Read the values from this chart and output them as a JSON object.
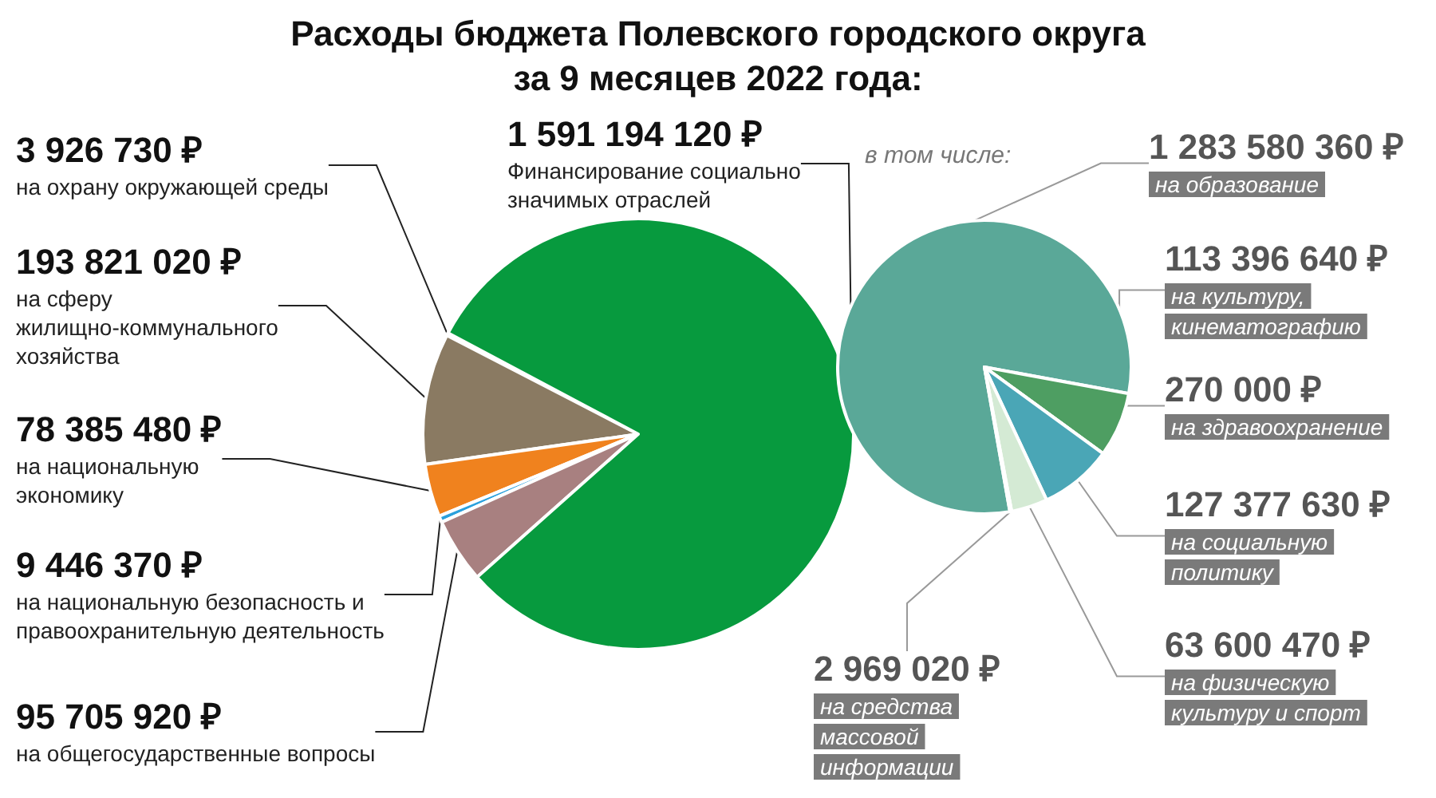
{
  "chart_data": [
    {
      "type": "pie",
      "title": "Расходы бюджета Полевского городского округа\nза 9 месяцев 2022 года:",
      "categories": [
        "на охрану окружающей среды",
        "на сферу жилищно-коммунального хозяйства",
        "на национальную экономику",
        "на национальную безопасность и правоохранительную деятельность",
        "на общегосударственные вопросы",
        "Финансирование социально значимых отраслей"
      ],
      "values": [
        3926730,
        193821020,
        78385480,
        9446370,
        95705920,
        1591194120
      ],
      "colors": [
        "#e6e6e6",
        "#8a7a62",
        "#f0821e",
        "#2aa0dc",
        "#a88080",
        "#079a3e"
      ],
      "value_labels": [
        "3 926 730 ₽",
        "193 821 020 ₽",
        "78 385 480 ₽",
        "9 446 370 ₽",
        "95 705 920 ₽",
        "1 591 194 120 ₽"
      ]
    },
    {
      "type": "pie",
      "annotations": [
        "в том числе:"
      ],
      "categories": [
        "на образование",
        "на культуру, кинематографию",
        "на здравоохранение",
        "на социальную политику",
        "на физическую культуру и спорт",
        "на средства массовой информации"
      ],
      "values": [
        1283580360,
        113396640,
        270000,
        127377630,
        63600470,
        2969020
      ],
      "colors": [
        "#5aa898",
        "#4e9e62",
        "#7fb0a0",
        "#4aa6b6",
        "#d4ead4",
        "#2e8a4a"
      ],
      "value_labels": [
        "1 283 580 360 ₽",
        "113 396 640 ₽",
        "270 000 ₽",
        "127 377 630 ₽",
        "63 600 470 ₽",
        "2 969 020 ₽"
      ]
    }
  ]
}
